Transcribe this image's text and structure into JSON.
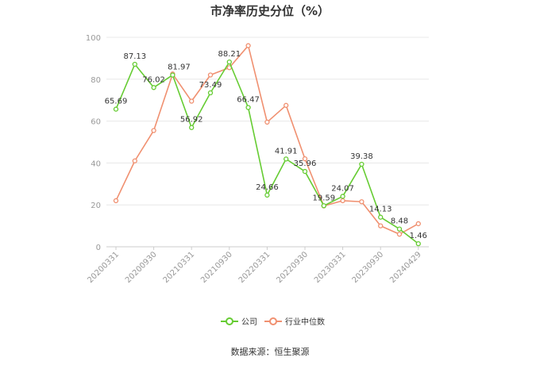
{
  "chart_data": {
    "type": "line",
    "title": "市净率历史分位（%）",
    "ylim": [
      0,
      100
    ],
    "y_ticks": [
      0,
      20,
      40,
      60,
      80,
      100
    ],
    "grid": true,
    "legend_position": "bottom",
    "x_tick_labels": [
      "20200331",
      "20200930",
      "20210331",
      "20210930",
      "20220331",
      "20220930",
      "20230331",
      "20230930",
      "20240429"
    ],
    "series": [
      {
        "name": "公司",
        "color": "#66cc33",
        "values": [
          65.69,
          87.13,
          76.02,
          81.97,
          56.92,
          73.49,
          88.21,
          66.47,
          24.66,
          41.91,
          35.96,
          19.59,
          24.07,
          39.38,
          14.13,
          8.48,
          1.46
        ],
        "data_labels": [
          "65.69",
          "87.13",
          "76.02",
          "81.97",
          "56.92",
          "73.49",
          "88.21",
          "66.47",
          "24.66",
          "41.91",
          "35.96",
          "19.59",
          "24.07",
          "39.38",
          "14.13",
          "8.48",
          "1.46"
        ]
      },
      {
        "name": "行业中位数",
        "color": "#f09070",
        "values": [
          22.0,
          41.0,
          55.5,
          82.5,
          69.5,
          82.0,
          85.5,
          96.0,
          59.5,
          67.5,
          42.0,
          19.5,
          22.0,
          21.5,
          10.0,
          6.0,
          11.0
        ]
      }
    ]
  },
  "source_text": "数据来源：恒生聚源"
}
